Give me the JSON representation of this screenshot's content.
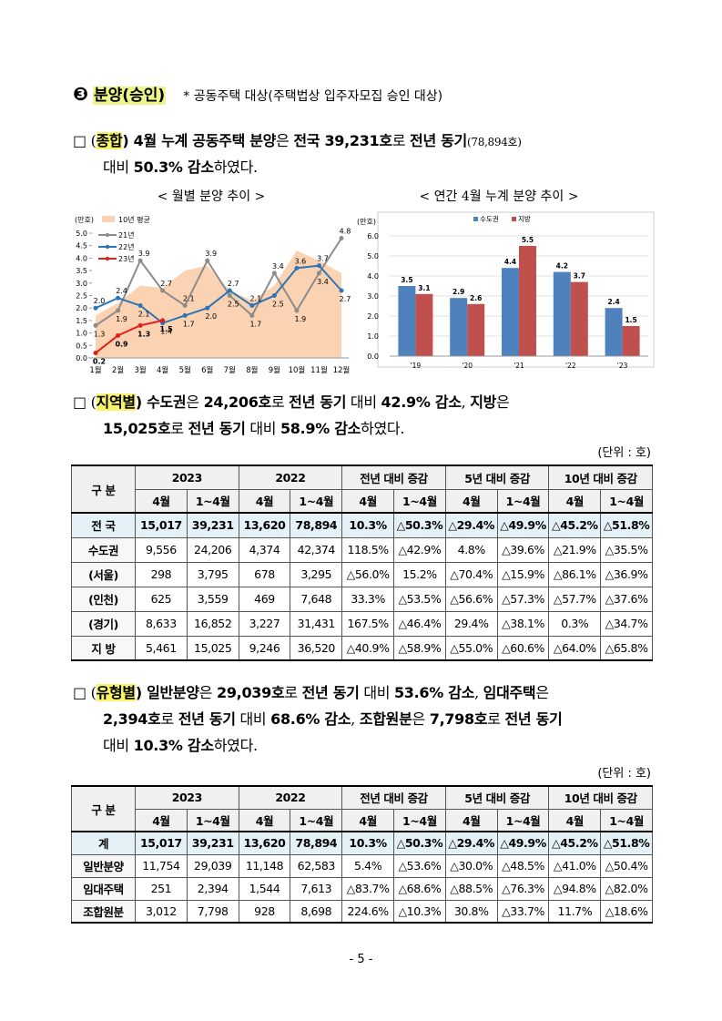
{
  "heading": {
    "marker": "❸",
    "title": "분양(승인)",
    "note": "* 공동주택 대상(주택법상 입주자모집 승인 대상)"
  },
  "paragraphs": [
    {
      "lines": [
        [
          {
            "text": "□ ("
          },
          {
            "text": "종합",
            "bold": true,
            "highlight": true
          },
          {
            "text": ") 4월 누계 공동주택 분양",
            "bold": true
          },
          {
            "text": "은 "
          },
          {
            "text": "전국 39,231호",
            "bold": true
          },
          {
            "text": "로 "
          },
          {
            "text": "전년 동기",
            "bold": true
          },
          {
            "text": "(78,894호)",
            "small": true
          }
        ],
        [
          {
            "text": "대비 "
          },
          {
            "text": "50.3% 감소",
            "bold": true
          },
          {
            "text": "하였다."
          }
        ]
      ]
    },
    {
      "lines": [
        [
          {
            "text": "□ ("
          },
          {
            "text": "지역별",
            "bold": true,
            "highlight": true
          },
          {
            "text": ") 수도권",
            "bold": true
          },
          {
            "text": "은 "
          },
          {
            "text": "24,206호",
            "bold": true
          },
          {
            "text": "로 "
          },
          {
            "text": "전년 동기",
            "bold": true
          },
          {
            "text": " 대비 "
          },
          {
            "text": "42.9% 감소",
            "bold": true
          },
          {
            "text": ", "
          },
          {
            "text": "지방",
            "bold": true
          },
          {
            "text": "은"
          }
        ],
        [
          {
            "text": "15,025호",
            "bold": true
          },
          {
            "text": "로 "
          },
          {
            "text": "전년 동기",
            "bold": true
          },
          {
            "text": " 대비 "
          },
          {
            "text": "58.9% 감소",
            "bold": true
          },
          {
            "text": "하였다."
          }
        ]
      ]
    },
    {
      "lines": [
        [
          {
            "text": "□ ("
          },
          {
            "text": "유형별",
            "bold": true,
            "highlight": true
          },
          {
            "text": ") 일반분양",
            "bold": true
          },
          {
            "text": "은 "
          },
          {
            "text": "29,039호",
            "bold": true
          },
          {
            "text": "로 "
          },
          {
            "text": "전년 동기",
            "bold": true
          },
          {
            "text": " 대비 "
          },
          {
            "text": "53.6% 감소",
            "bold": true
          },
          {
            "text": ", "
          },
          {
            "text": "임대주택",
            "bold": true
          },
          {
            "text": "은"
          }
        ],
        [
          {
            "text": "2,394호",
            "bold": true
          },
          {
            "text": "로 "
          },
          {
            "text": "전년 동기",
            "bold": true
          },
          {
            "text": " 대비 "
          },
          {
            "text": "68.6% 감소",
            "bold": true
          },
          {
            "text": ", "
          },
          {
            "text": "조합원분",
            "bold": true
          },
          {
            "text": "은 "
          },
          {
            "text": "7,798호",
            "bold": true
          },
          {
            "text": "로 "
          },
          {
            "text": "전년 동기",
            "bold": true
          }
        ],
        [
          {
            "text": "대비 "
          },
          {
            "text": "10.3% 감소",
            "bold": true
          },
          {
            "text": "하였다."
          }
        ]
      ]
    }
  ],
  "charts": [
    {
      "type": "line",
      "title": "< 월별 분양 추이 >",
      "y_label": "(만호)",
      "categories": [
        "1월",
        "2월",
        "3월",
        "4월",
        "5월",
        "6월",
        "7월",
        "8월",
        "9월",
        "10월",
        "11월",
        "12월"
      ],
      "area": {
        "name": "10년 평균",
        "color": "#fbd3b3",
        "values": [
          1.7,
          2.2,
          2.9,
          2.8,
          3.5,
          3.7,
          2.7,
          2.3,
          2.9,
          4.3,
          3.9,
          3.4
        ]
      },
      "series": [
        {
          "name": "21년",
          "color": "#8c8c8c",
          "values": [
            1.3,
            1.9,
            3.9,
            2.7,
            2.1,
            3.9,
            2.5,
            1.7,
            3.4,
            1.9,
            3.4,
            4.8
          ]
        },
        {
          "name": "22년",
          "color": "#2e75b6",
          "values": [
            2.0,
            2.4,
            2.1,
            1.4,
            1.7,
            2.0,
            2.7,
            2.1,
            2.5,
            3.6,
            3.7,
            2.7
          ],
          "value_labels": [
            "2.0",
            "2.4",
            "2.1",
            "1.4",
            "1.7",
            "2.0",
            "2.7",
            "2.1",
            "2.5",
            "3.6",
            "3.7",
            "2.7"
          ]
        },
        {
          "name": "23년",
          "color": "#e0201b",
          "values": [
            0.2,
            0.9,
            1.3,
            1.5,
            null,
            null,
            null,
            null,
            null,
            null,
            null,
            null
          ]
        }
      ],
      "ylim": [
        0,
        5
      ],
      "yticks": [
        {
          "value": 0,
          "label": "0.0"
        },
        {
          "value": 0.5,
          "label": "0.5"
        },
        {
          "value": 1,
          "label": "1.0"
        },
        {
          "value": 1.5,
          "label": "1.5"
        },
        {
          "value": 2,
          "label": "2.0"
        },
        {
          "value": 2.5,
          "label": "2.5"
        },
        {
          "value": 3,
          "label": "3.0"
        },
        {
          "value": 3.5,
          "label": "3.5"
        },
        {
          "value": 4,
          "label": "4.0"
        },
        {
          "value": 4.5,
          "label": "4.5"
        },
        {
          "value": 5,
          "label": "5.0"
        }
      ],
      "grid": false
    },
    {
      "type": "bar",
      "title": "< 연간 4월 누계 분양 추이 >",
      "y_label": "(만호)",
      "categories": [
        "'19",
        "'20",
        "'21",
        "'22",
        "'23"
      ],
      "series": [
        {
          "name": "수도권",
          "color": "#4f81bd",
          "values": [
            3.5,
            2.9,
            4.4,
            4.2,
            2.4
          ]
        },
        {
          "name": "지방",
          "color": "#c0504d",
          "values": [
            3.1,
            2.6,
            5.5,
            3.7,
            1.5
          ]
        }
      ],
      "ylim": [
        0,
        6
      ],
      "yticks": [
        {
          "value": 0,
          "label": "0.0"
        },
        {
          "value": 1,
          "label": "1.0"
        },
        {
          "value": 2,
          "label": "2.0"
        },
        {
          "value": 3,
          "label": "3.0"
        },
        {
          "value": 4,
          "label": "4.0"
        },
        {
          "value": 5,
          "label": "5.0"
        },
        {
          "value": 6,
          "label": "6.0"
        }
      ],
      "grid": true
    }
  ],
  "tables": [
    {
      "unit": "(단위 : 호)",
      "corner": "구 분",
      "groups": [
        "2023",
        "2022",
        "전년 대비 증감",
        "5년 대비 증감",
        "10년 대비 증감"
      ],
      "subheaders": [
        "4월",
        "1~4월",
        "4월",
        "1~4월",
        "4월",
        "1~4월",
        "4월",
        "1~4월",
        "4월",
        "1~4월"
      ],
      "rows": [
        {
          "label": "전 국",
          "cells": [
            "15,017",
            "39,231",
            "13,620",
            "78,894",
            "10.3%",
            "△50.3%",
            "△29.4%",
            "△49.9%",
            "△45.2%",
            "△51.8%"
          ]
        },
        {
          "label": "수도권",
          "cells": [
            "9,556",
            "24,206",
            "4,374",
            "42,374",
            "118.5%",
            "△42.9%",
            "4.8%",
            "△39.6%",
            "△21.9%",
            "△35.5%"
          ]
        },
        {
          "label": "(서울)",
          "cells": [
            "298",
            "3,795",
            "678",
            "3,295",
            "△56.0%",
            "15.2%",
            "△70.4%",
            "△15.9%",
            "△86.1%",
            "△36.9%"
          ]
        },
        {
          "label": "(인천)",
          "cells": [
            "625",
            "3,559",
            "469",
            "7,648",
            "33.3%",
            "△53.5%",
            "△56.6%",
            "△57.3%",
            "△57.7%",
            "△37.6%"
          ]
        },
        {
          "label": "(경기)",
          "cells": [
            "8,633",
            "16,852",
            "3,227",
            "31,431",
            "167.5%",
            "△46.4%",
            "29.4%",
            "△38.1%",
            "0.3%",
            "△34.7%"
          ]
        },
        {
          "label": "지 방",
          "cells": [
            "5,461",
            "15,025",
            "9,246",
            "36,520",
            "△40.9%",
            "△58.9%",
            "△55.0%",
            "△60.6%",
            "△64.0%",
            "△65.8%"
          ]
        }
      ]
    },
    {
      "unit": "(단위 : 호)",
      "corner": "구 분",
      "groups": [
        "2023",
        "2022",
        "전년 대비 증감",
        "5년 대비 증감",
        "10년 대비 증감"
      ],
      "subheaders": [
        "4월",
        "1~4월",
        "4월",
        "1~4월",
        "4월",
        "1~4월",
        "4월",
        "1~4월",
        "4월",
        "1~4월"
      ],
      "rows": [
        {
          "label": "계",
          "cells": [
            "15,017",
            "39,231",
            "13,620",
            "78,894",
            "10.3%",
            "△50.3%",
            "△29.4%",
            "△49.9%",
            "△45.2%",
            "△51.8%"
          ]
        },
        {
          "label": "일반분양",
          "cells": [
            "11,754",
            "29,039",
            "11,148",
            "62,583",
            "5.4%",
            "△53.6%",
            "△30.0%",
            "△48.5%",
            "△41.0%",
            "△50.4%"
          ]
        },
        {
          "label": "임대주택",
          "cells": [
            "251",
            "2,394",
            "1,544",
            "7,613",
            "△83.7%",
            "△68.6%",
            "△88.5%",
            "△76.3%",
            "△94.8%",
            "△82.0%"
          ]
        },
        {
          "label": "조합원분",
          "cells": [
            "3,012",
            "7,798",
            "928",
            "8,698",
            "224.6%",
            "△10.3%",
            "30.8%",
            "△33.7%",
            "11.7%",
            "△18.6%"
          ]
        }
      ]
    }
  ],
  "page_number": "- 5 -"
}
